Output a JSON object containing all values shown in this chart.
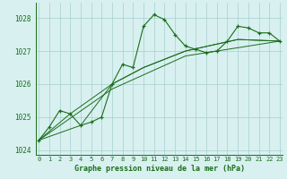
{
  "main_x": [
    0,
    1,
    2,
    3,
    4,
    5,
    6,
    7,
    8,
    9,
    10,
    11,
    12,
    13,
    14,
    15,
    16,
    17,
    18,
    19,
    20,
    21,
    22,
    23
  ],
  "main_y": [
    1024.3,
    1024.7,
    1025.2,
    1025.1,
    1024.75,
    1024.85,
    1025.0,
    1026.0,
    1026.6,
    1026.5,
    1027.75,
    1028.1,
    1027.95,
    1027.5,
    1027.15,
    1027.05,
    1026.95,
    1027.0,
    1027.3,
    1027.75,
    1027.7,
    1027.55,
    1027.55,
    1027.3
  ],
  "line2_x": [
    0,
    3,
    7,
    10,
    14,
    19,
    23
  ],
  "line2_y": [
    1024.3,
    1025.1,
    1026.0,
    1026.5,
    1027.0,
    1027.35,
    1027.3
  ],
  "line3_x": [
    0,
    4,
    7,
    10,
    14,
    19,
    23
  ],
  "line3_y": [
    1024.3,
    1024.75,
    1026.0,
    1026.5,
    1027.0,
    1027.35,
    1027.3
  ],
  "line4_x": [
    0,
    7,
    14,
    23
  ],
  "line4_y": [
    1024.3,
    1025.85,
    1026.85,
    1027.3
  ],
  "line_color": "#1a6e1a",
  "bg_color": "#d8f0f0",
  "grid_color": "#a8cece",
  "title": "Graphe pression niveau de la mer (hPa)",
  "xlim": [
    -0.3,
    23.3
  ],
  "ylim": [
    1023.85,
    1028.45
  ],
  "yticks": [
    1024,
    1025,
    1026,
    1027,
    1028
  ],
  "xtick_labels": [
    "0",
    "1",
    "2",
    "3",
    "4",
    "5",
    "6",
    "7",
    "8",
    "9",
    "10",
    "11",
    "12",
    "13",
    "14",
    "15",
    "16",
    "17",
    "18",
    "19",
    "20",
    "21",
    "22",
    "23"
  ]
}
